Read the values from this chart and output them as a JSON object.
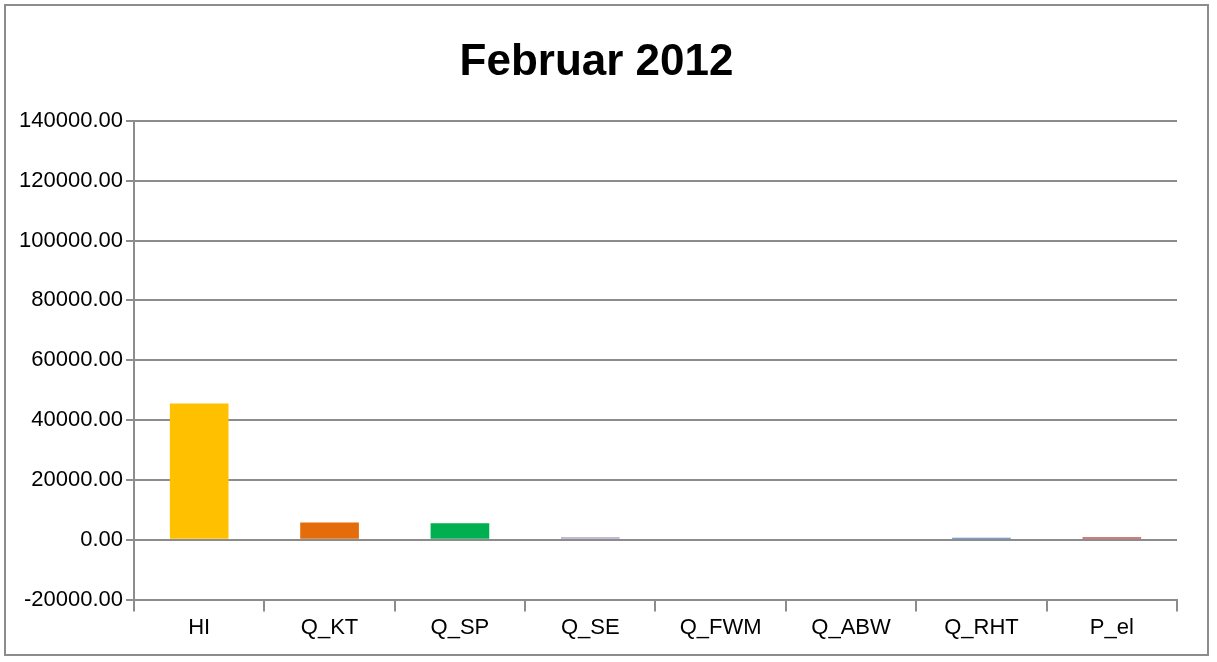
{
  "chart_data": {
    "type": "bar",
    "title": "Februar 2012",
    "categories": [
      "HI",
      "Q_KT",
      "Q_SP",
      "Q_SE",
      "Q_FWM",
      "Q_ABW",
      "Q_RHT",
      "P_el"
    ],
    "values": [
      45500,
      5800,
      5500,
      800,
      0,
      0,
      700,
      800
    ],
    "colors": [
      "#ffc000",
      "#e46c0a",
      "#00b050",
      "#b3a2c7",
      "#7f7f7f",
      "#7f7f7f",
      "#4f81bd",
      "#c0504d"
    ],
    "ylim": [
      -20000,
      140000
    ],
    "yticks": [
      {
        "value": -20000,
        "label": "-20000.00"
      },
      {
        "value": 0,
        "label": "0.00"
      },
      {
        "value": 20000,
        "label": "20000.00"
      },
      {
        "value": 40000,
        "label": "40000.00"
      },
      {
        "value": 60000,
        "label": "60000.00"
      },
      {
        "value": 80000,
        "label": "80000.00"
      },
      {
        "value": 100000,
        "label": "100000.00"
      },
      {
        "value": 120000,
        "label": "120000.00"
      },
      {
        "value": 140000,
        "label": "140000.00"
      }
    ],
    "grid": "y",
    "legend": false
  }
}
